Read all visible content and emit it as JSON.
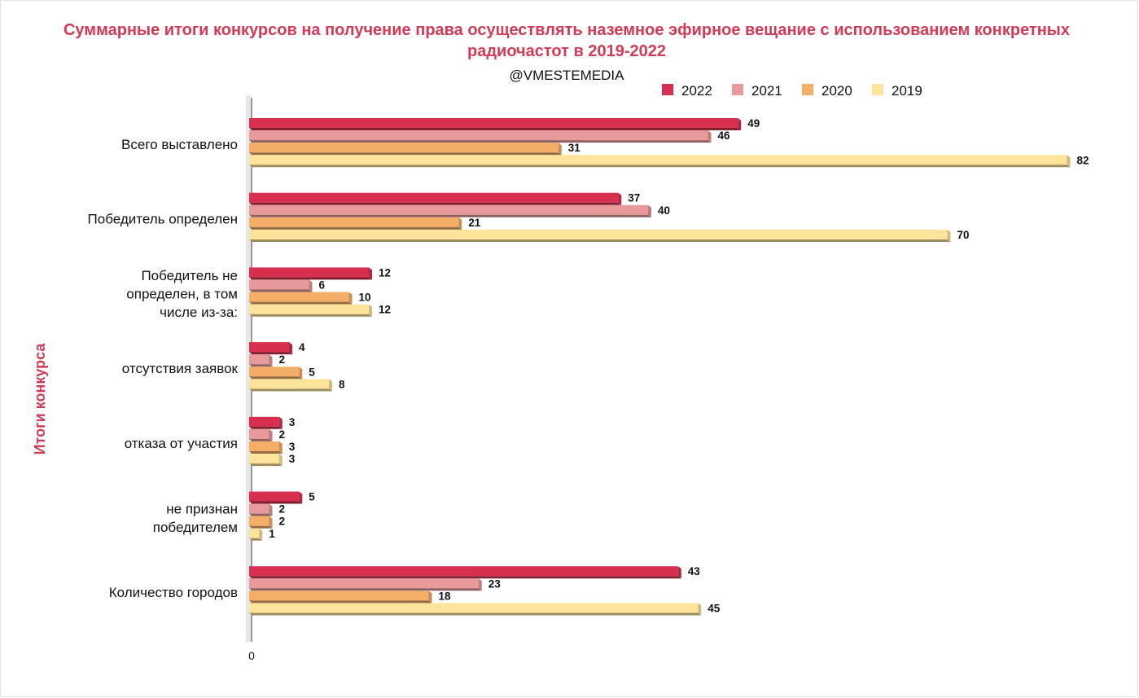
{
  "chart_data": {
    "type": "bar",
    "orientation": "horizontal",
    "title": "Суммарные итоги конкурсов на получение права осуществлять наземное эфирное вещание с использованием конкретных радиочастот в 2019-2022",
    "subtitle": "@VMESTEMEDIA",
    "ylabel": "Итоги конкурса",
    "xlabel": "",
    "x_tick_labels": [
      "0"
    ],
    "xlim": [
      0,
      82
    ],
    "legend_position": "top-right",
    "grid": false,
    "categories": [
      "Всего выставлено",
      "Победитель определен",
      "Победитель не определен,  в том числе из-за:",
      "отсутствия заявок",
      "отказа от участия",
      "не признан победителем",
      "Количество городов"
    ],
    "category_lines": [
      [
        "Всего выставлено"
      ],
      [
        "Победитель определен"
      ],
      [
        "Победитель не",
        "определен,  в том",
        "числе из-за:"
      ],
      [
        "отсутствия заявок"
      ],
      [
        "отказа от участия"
      ],
      [
        "не признан",
        "победителем"
      ],
      [
        "Количество городов"
      ]
    ],
    "series": [
      {
        "name": "2022",
        "color": "#d7304f",
        "values": [
          49,
          37,
          12,
          4,
          3,
          5,
          43
        ]
      },
      {
        "name": "2021",
        "color": "#e89a9a",
        "values": [
          46,
          40,
          6,
          2,
          2,
          2,
          23
        ]
      },
      {
        "name": "2020",
        "color": "#f4ae68",
        "values": [
          31,
          21,
          10,
          5,
          3,
          2,
          18
        ]
      },
      {
        "name": "2019",
        "color": "#fde49a",
        "values": [
          82,
          70,
          12,
          8,
          3,
          1,
          45
        ]
      }
    ]
  }
}
